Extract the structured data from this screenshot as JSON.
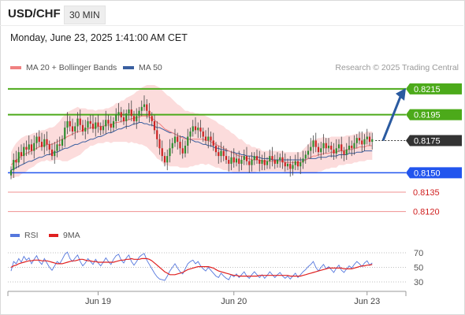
{
  "header": {
    "symbol": "USD/CHF",
    "timeframe": "30 MIN",
    "datetime": "Monday, June 23, 2025 1:41:00 AM CET"
  },
  "legend": {
    "price": [
      {
        "label": "MA 20 + Bollinger Bands",
        "color": "#f08080"
      },
      {
        "label": "MA 50",
        "color": "#3a5fa0"
      }
    ],
    "rsi": [
      {
        "label": "RSI",
        "color": "#5577dd"
      },
      {
        "label": "9MA",
        "color": "#e02020"
      }
    ]
  },
  "credit": "Research © 2025 Trading Central",
  "colors": {
    "resistance": "#4caa1a",
    "support": "#2255ee",
    "minor_support": "#f09090",
    "current": "#333333",
    "candle_up": "#2e8b2e",
    "candle_down": "#cc2222",
    "arrow": "#2a5aa0",
    "band_fill": "#fbd6d6"
  },
  "chart_data": [
    {
      "type": "candlestick",
      "title": "USD/CHF",
      "ylim": [
        0.811,
        0.8232
      ],
      "levels": [
        {
          "value": 0.8215,
          "label": "0.8215",
          "kind": "resistance"
        },
        {
          "value": 0.8195,
          "label": "0.8195",
          "kind": "resistance"
        },
        {
          "value": 0.8175,
          "label": "0.8175",
          "kind": "current"
        },
        {
          "value": 0.815,
          "label": "0.8150",
          "kind": "support"
        },
        {
          "value": 0.8135,
          "label": "0.8135",
          "kind": "minor_support"
        },
        {
          "value": 0.812,
          "label": "0.8120",
          "kind": "minor_support"
        }
      ],
      "x_ticks": [
        {
          "index": 34,
          "label": "Jun 19"
        },
        {
          "index": 87,
          "label": "Jun 20"
        },
        {
          "index": 139,
          "label": "Jun 23"
        }
      ],
      "close": [
        0.8152,
        0.816,
        0.8158,
        0.8166,
        0.8163,
        0.817,
        0.8168,
        0.8172,
        0.8167,
        0.8173,
        0.8178,
        0.8174,
        0.817,
        0.8176,
        0.8172,
        0.8168,
        0.8163,
        0.8167,
        0.8172,
        0.8171,
        0.8176,
        0.8185,
        0.819,
        0.8186,
        0.8182,
        0.8186,
        0.8192,
        0.8187,
        0.8182,
        0.8185,
        0.819,
        0.8188,
        0.8184,
        0.8189,
        0.8186,
        0.8183,
        0.8186,
        0.8191,
        0.8188,
        0.8185,
        0.819,
        0.8195,
        0.8197,
        0.8193,
        0.819,
        0.8196,
        0.8199,
        0.8194,
        0.819,
        0.8194,
        0.8198,
        0.8201,
        0.8203,
        0.8198,
        0.8194,
        0.819,
        0.8183,
        0.8176,
        0.8169,
        0.8163,
        0.8158,
        0.8163,
        0.8169,
        0.8173,
        0.8178,
        0.8174,
        0.8169,
        0.8165,
        0.8171,
        0.8178,
        0.8182,
        0.8186,
        0.8183,
        0.8185,
        0.8182,
        0.8178,
        0.8175,
        0.8178,
        0.8175,
        0.8171,
        0.8166,
        0.8163,
        0.8167,
        0.8163,
        0.816,
        0.8157,
        0.8162,
        0.8158,
        0.8161,
        0.8157,
        0.816,
        0.8163,
        0.8159,
        0.8156,
        0.816,
        0.8163,
        0.816,
        0.8157,
        0.816,
        0.8156,
        0.8159,
        0.8163,
        0.816,
        0.8157,
        0.816,
        0.8162,
        0.8158,
        0.8155,
        0.8157,
        0.8153,
        0.8156,
        0.8159,
        0.8155,
        0.8158,
        0.8161,
        0.8164,
        0.8167,
        0.817,
        0.8175,
        0.817,
        0.8166,
        0.8169,
        0.8173,
        0.8169,
        0.8171,
        0.8168,
        0.8165,
        0.8169,
        0.8172,
        0.8167,
        0.8164,
        0.8168,
        0.8171,
        0.8169,
        0.8173,
        0.8177,
        0.8175,
        0.8172,
        0.8176,
        0.8178,
        0.8174,
        0.8176
      ],
      "ma20": [
        0.8156,
        0.8158,
        0.816,
        0.8161,
        0.8163,
        0.8164,
        0.8165,
        0.8166,
        0.8167,
        0.8168,
        0.8169,
        0.817,
        0.8171,
        0.8171,
        0.8172,
        0.8172,
        0.8172,
        0.8173,
        0.8174,
        0.8175,
        0.8176,
        0.8177,
        0.8178,
        0.8179,
        0.818,
        0.8181,
        0.8182,
        0.8182,
        0.8183,
        0.8184,
        0.8184,
        0.8185,
        0.8185,
        0.8185,
        0.8186,
        0.8186,
        0.8186,
        0.8187,
        0.8187,
        0.8187,
        0.8188,
        0.8189,
        0.8189,
        0.819,
        0.819,
        0.8191,
        0.8191,
        0.8192,
        0.8192,
        0.8193,
        0.8193,
        0.8194,
        0.8194,
        0.8194,
        0.8193,
        0.8192,
        0.8191,
        0.8189,
        0.8188,
        0.8186,
        0.8184,
        0.8183,
        0.8182,
        0.8181,
        0.818,
        0.8179,
        0.8178,
        0.8177,
        0.8176,
        0.8176,
        0.8176,
        0.8176,
        0.8176,
        0.8176,
        0.8176,
        0.8176,
        0.8175,
        0.8175,
        0.8174,
        0.8173,
        0.8172,
        0.8171,
        0.817,
        0.8169,
        0.8168,
        0.8167,
        0.8166,
        0.8165,
        0.8164,
        0.8163,
        0.8163,
        0.8162,
        0.8161,
        0.8161,
        0.816,
        0.816,
        0.816,
        0.816,
        0.8159,
        0.8159,
        0.8159,
        0.8159,
        0.8159,
        0.8159,
        0.8159,
        0.8159,
        0.8159,
        0.8158,
        0.8158,
        0.8158,
        0.8158,
        0.8158,
        0.8158,
        0.8158,
        0.8159,
        0.816,
        0.8161,
        0.8162,
        0.8163,
        0.8163,
        0.8164,
        0.8164,
        0.8165,
        0.8165,
        0.8165,
        0.8166,
        0.8166,
        0.8166,
        0.8167,
        0.8167,
        0.8167,
        0.8168,
        0.8168,
        0.8168,
        0.8169,
        0.8169,
        0.817,
        0.817,
        0.817,
        0.8171,
        0.8171,
        0.8171
      ],
      "ma50": [
        0.8152,
        0.8153,
        0.8154,
        0.8155,
        0.8156,
        0.8157,
        0.8158,
        0.8159,
        0.8159,
        0.816,
        0.8161,
        0.8162,
        0.8162,
        0.8163,
        0.8164,
        0.8164,
        0.8165,
        0.8166,
        0.8166,
        0.8167,
        0.8168,
        0.8169,
        0.8169,
        0.817,
        0.8171,
        0.8172,
        0.8172,
        0.8173,
        0.8174,
        0.8174,
        0.8175,
        0.8176,
        0.8176,
        0.8177,
        0.8178,
        0.8178,
        0.8179,
        0.818,
        0.8181,
        0.8181,
        0.8182,
        0.8183,
        0.8184,
        0.8184,
        0.8185,
        0.8186,
        0.8186,
        0.8187,
        0.8188,
        0.8188,
        0.8189,
        0.8189,
        0.8188,
        0.8188,
        0.8187,
        0.8187,
        0.8186,
        0.8185,
        0.8185,
        0.8184,
        0.8183,
        0.8182,
        0.8181,
        0.8181,
        0.818,
        0.8179,
        0.8178,
        0.8178,
        0.8177,
        0.8176,
        0.8176,
        0.8175,
        0.8174,
        0.8174,
        0.8173,
        0.8172,
        0.8172,
        0.8171,
        0.8171,
        0.817,
        0.8169,
        0.8169,
        0.8168,
        0.8168,
        0.8167,
        0.8167,
        0.8166,
        0.8166,
        0.8165,
        0.8165,
        0.8164,
        0.8164,
        0.8163,
        0.8163,
        0.8163,
        0.8162,
        0.8162,
        0.8162,
        0.8161,
        0.8161,
        0.8161,
        0.8161,
        0.816,
        0.816,
        0.816,
        0.816,
        0.816,
        0.816,
        0.816,
        0.816,
        0.816,
        0.816,
        0.816,
        0.816,
        0.816,
        0.816,
        0.8161,
        0.8161,
        0.8161,
        0.8161,
        0.8162,
        0.8162,
        0.8162,
        0.8162,
        0.8163,
        0.8163,
        0.8163,
        0.8163,
        0.8164,
        0.8164,
        0.8164,
        0.8164,
        0.8165,
        0.8165,
        0.8165,
        0.8166,
        0.8166,
        0.8166,
        0.8167,
        0.8167,
        0.8167,
        0.8167
      ],
      "bb_width": [
        0.001,
        0.0012,
        0.0013,
        0.0014,
        0.0014,
        0.0014,
        0.0014,
        0.0013,
        0.0013,
        0.0013,
        0.0012,
        0.0012,
        0.0012,
        0.0012,
        0.0012,
        0.0013,
        0.0013,
        0.0013,
        0.0014,
        0.0015,
        0.0017,
        0.0018,
        0.0019,
        0.0019,
        0.0019,
        0.0019,
        0.0019,
        0.0018,
        0.0017,
        0.0016,
        0.0015,
        0.0014,
        0.0014,
        0.0013,
        0.0013,
        0.0013,
        0.0013,
        0.0013,
        0.0013,
        0.0014,
        0.0014,
        0.0015,
        0.0015,
        0.0016,
        0.0016,
        0.0017,
        0.0018,
        0.0018,
        0.0019,
        0.002,
        0.0021,
        0.0022,
        0.0023,
        0.0024,
        0.0025,
        0.0026,
        0.0027,
        0.0028,
        0.0028,
        0.0028,
        0.0028,
        0.0027,
        0.0027,
        0.0026,
        0.0025,
        0.0024,
        0.0024,
        0.0023,
        0.0022,
        0.0022,
        0.0021,
        0.0021,
        0.002,
        0.002,
        0.0019,
        0.0019,
        0.0019,
        0.0018,
        0.0018,
        0.0018,
        0.0018,
        0.0017,
        0.0017,
        0.0017,
        0.0016,
        0.0016,
        0.0015,
        0.0015,
        0.0014,
        0.0013,
        0.0013,
        0.0012,
        0.0011,
        0.0011,
        0.001,
        0.001,
        0.0009,
        0.0009,
        0.0008,
        0.0008,
        0.0008,
        0.0008,
        0.0008,
        0.0008,
        0.0008,
        0.0008,
        0.0008,
        0.0008,
        0.0008,
        0.0008,
        0.0008,
        0.0008,
        0.0008,
        0.0008,
        0.0009,
        0.001,
        0.0011,
        0.0012,
        0.0013,
        0.0013,
        0.0013,
        0.0013,
        0.0013,
        0.0012,
        0.0012,
        0.0012,
        0.0012,
        0.0012,
        0.0011,
        0.0011,
        0.0011,
        0.0011,
        0.0011,
        0.0011,
        0.0011,
        0.0011,
        0.0011,
        0.0011,
        0.0011,
        0.0011,
        0.0011,
        0.0011
      ],
      "projection": {
        "from_index": 144,
        "from_value": 0.8175,
        "to_value": 0.8215
      }
    },
    {
      "type": "line",
      "title": "RSI",
      "ylim": [
        30,
        70
      ],
      "ticks": [
        70,
        50,
        30
      ],
      "rsi": [
        45,
        58,
        55,
        62,
        57,
        65,
        60,
        63,
        55,
        61,
        66,
        58,
        54,
        62,
        56,
        50,
        46,
        52,
        58,
        55,
        61,
        68,
        71,
        62,
        58,
        63,
        67,
        58,
        52,
        56,
        62,
        58,
        54,
        61,
        56,
        52,
        57,
        63,
        58,
        54,
        61,
        66,
        68,
        60,
        56,
        63,
        67,
        58,
        53,
        58,
        64,
        67,
        69,
        60,
        54,
        48,
        42,
        37,
        34,
        33,
        32,
        38,
        45,
        50,
        55,
        49,
        44,
        41,
        48,
        55,
        58,
        60,
        55,
        58,
        52,
        48,
        45,
        50,
        46,
        42,
        38,
        36,
        42,
        38,
        35,
        33,
        40,
        37,
        41,
        36,
        40,
        44,
        38,
        35,
        40,
        44,
        40,
        36,
        40,
        35,
        39,
        44,
        40,
        36,
        40,
        43,
        38,
        35,
        38,
        34,
        38,
        42,
        36,
        40,
        44,
        47,
        51,
        54,
        58,
        50,
        45,
        50,
        54,
        48,
        51,
        47,
        43,
        49,
        53,
        46,
        43,
        48,
        52,
        49,
        54,
        58,
        55,
        51,
        56,
        59,
        53,
        56
      ],
      "ma9": [
        50,
        52,
        53,
        55,
        56,
        57,
        58,
        59,
        59,
        60,
        60,
        60,
        59,
        59,
        59,
        58,
        57,
        56,
        55,
        55,
        55,
        56,
        57,
        58,
        59,
        59,
        60,
        61,
        61,
        60,
        59,
        59,
        58,
        58,
        57,
        57,
        57,
        57,
        57,
        57,
        57,
        58,
        59,
        60,
        60,
        61,
        61,
        62,
        61,
        61,
        61,
        62,
        62,
        62,
        61,
        59,
        56,
        53,
        50,
        47,
        44,
        42,
        40,
        40,
        40,
        41,
        42,
        43,
        45,
        47,
        48,
        49,
        50,
        51,
        51,
        51,
        51,
        51,
        50,
        49,
        47,
        45,
        44,
        43,
        42,
        41,
        40,
        39,
        39,
        38,
        38,
        38,
        38,
        38,
        38,
        38,
        38,
        39,
        39,
        39,
        39,
        39,
        39,
        39,
        39,
        39,
        39,
        39,
        39,
        38,
        38,
        38,
        38,
        38,
        39,
        40,
        41,
        42,
        43,
        44,
        45,
        46,
        47,
        48,
        49,
        49,
        49,
        49,
        49,
        49,
        48,
        48,
        48,
        48,
        49,
        50,
        51,
        52,
        52,
        53,
        53,
        54
      ]
    }
  ]
}
